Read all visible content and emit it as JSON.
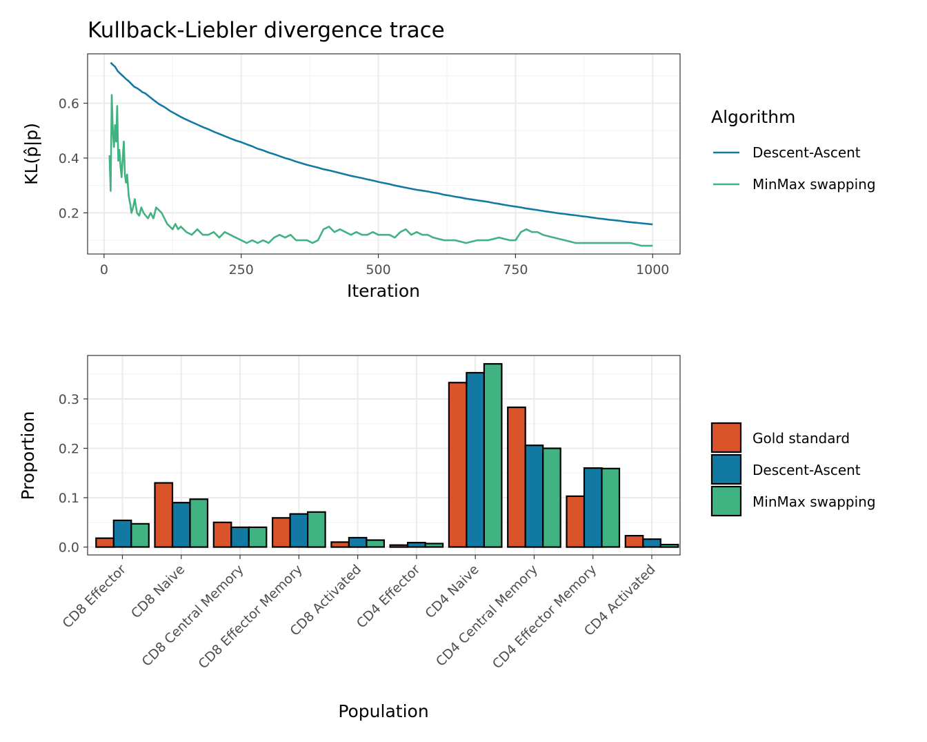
{
  "chart_data": [
    {
      "type": "line",
      "title": "Kullback-Liebler divergence trace",
      "xlabel": "Iteration",
      "ylabel": "KL(p̂|p)",
      "xlim": [
        -30,
        1050
      ],
      "ylim": [
        0.05,
        0.78
      ],
      "x_ticks": [
        0,
        250,
        500,
        750,
        1000
      ],
      "x_tick_labels": [
        "0",
        "250",
        "500",
        "750",
        "1000"
      ],
      "y_ticks": [
        0.2,
        0.4,
        0.6
      ],
      "y_tick_labels": [
        "0.2",
        "0.4",
        "0.6"
      ],
      "grid": true,
      "legend": {
        "title": "Algorithm",
        "position": "right"
      },
      "series": [
        {
          "name": "Descent-Ascent",
          "color": "#1279A3",
          "x": [
            12,
            15,
            20,
            25,
            30,
            35,
            40,
            45,
            50,
            55,
            60,
            65,
            70,
            75,
            80,
            90,
            100,
            110,
            120,
            130,
            140,
            150,
            160,
            170,
            180,
            190,
            200,
            210,
            220,
            230,
            240,
            250,
            260,
            270,
            280,
            290,
            300,
            310,
            320,
            330,
            340,
            350,
            360,
            370,
            380,
            390,
            400,
            410,
            420,
            430,
            440,
            450,
            460,
            470,
            480,
            490,
            500,
            510,
            520,
            530,
            540,
            550,
            560,
            570,
            580,
            590,
            600,
            610,
            620,
            630,
            640,
            650,
            660,
            670,
            680,
            690,
            700,
            710,
            720,
            730,
            740,
            750,
            760,
            770,
            780,
            790,
            800,
            810,
            820,
            830,
            840,
            850,
            860,
            870,
            880,
            890,
            900,
            910,
            920,
            930,
            940,
            950,
            960,
            970,
            980,
            990,
            1000
          ],
          "values": [
            0.748,
            0.742,
            0.733,
            0.717,
            0.707,
            0.698,
            0.688,
            0.68,
            0.67,
            0.66,
            0.655,
            0.648,
            0.64,
            0.636,
            0.628,
            0.612,
            0.597,
            0.586,
            0.572,
            0.561,
            0.55,
            0.54,
            0.531,
            0.522,
            0.513,
            0.505,
            0.496,
            0.488,
            0.48,
            0.472,
            0.464,
            0.458,
            0.45,
            0.443,
            0.434,
            0.428,
            0.42,
            0.414,
            0.407,
            0.4,
            0.394,
            0.387,
            0.381,
            0.375,
            0.37,
            0.365,
            0.359,
            0.355,
            0.35,
            0.345,
            0.34,
            0.335,
            0.331,
            0.327,
            0.322,
            0.318,
            0.313,
            0.309,
            0.305,
            0.3,
            0.296,
            0.292,
            0.288,
            0.284,
            0.281,
            0.278,
            0.274,
            0.271,
            0.266,
            0.263,
            0.259,
            0.256,
            0.252,
            0.249,
            0.246,
            0.243,
            0.24,
            0.236,
            0.233,
            0.229,
            0.226,
            0.223,
            0.22,
            0.216,
            0.213,
            0.21,
            0.207,
            0.204,
            0.201,
            0.198,
            0.196,
            0.193,
            0.191,
            0.188,
            0.186,
            0.183,
            0.18,
            0.178,
            0.175,
            0.173,
            0.171,
            0.168,
            0.166,
            0.164,
            0.162,
            0.16,
            0.158
          ]
        },
        {
          "name": "MinMax swapping",
          "color": "#41B282",
          "x": [
            10,
            12,
            14,
            16,
            18,
            20,
            22,
            24,
            26,
            28,
            30,
            32,
            34,
            36,
            38,
            40,
            42,
            45,
            48,
            50,
            53,
            56,
            60,
            64,
            68,
            72,
            76,
            80,
            85,
            90,
            95,
            100,
            105,
            110,
            115,
            120,
            125,
            130,
            135,
            140,
            150,
            160,
            170,
            180,
            190,
            200,
            210,
            220,
            230,
            240,
            250,
            260,
            270,
            280,
            290,
            300,
            310,
            320,
            330,
            340,
            350,
            360,
            370,
            380,
            390,
            400,
            410,
            420,
            430,
            440,
            450,
            460,
            470,
            480,
            490,
            500,
            510,
            520,
            530,
            540,
            550,
            560,
            570,
            580,
            590,
            600,
            620,
            640,
            660,
            680,
            700,
            720,
            740,
            750,
            760,
            770,
            780,
            790,
            800,
            820,
            840,
            860,
            880,
            900,
            920,
            940,
            960,
            980,
            1000
          ],
          "values": [
            0.41,
            0.28,
            0.63,
            0.5,
            0.44,
            0.52,
            0.46,
            0.59,
            0.39,
            0.43,
            0.37,
            0.33,
            0.4,
            0.46,
            0.34,
            0.31,
            0.34,
            0.26,
            0.23,
            0.2,
            0.22,
            0.25,
            0.2,
            0.19,
            0.22,
            0.2,
            0.19,
            0.18,
            0.2,
            0.18,
            0.22,
            0.21,
            0.2,
            0.18,
            0.16,
            0.15,
            0.14,
            0.16,
            0.14,
            0.15,
            0.13,
            0.12,
            0.14,
            0.12,
            0.12,
            0.13,
            0.11,
            0.13,
            0.12,
            0.11,
            0.1,
            0.09,
            0.1,
            0.09,
            0.1,
            0.09,
            0.11,
            0.12,
            0.11,
            0.12,
            0.1,
            0.1,
            0.1,
            0.09,
            0.1,
            0.14,
            0.15,
            0.13,
            0.14,
            0.13,
            0.12,
            0.13,
            0.12,
            0.12,
            0.13,
            0.12,
            0.12,
            0.12,
            0.11,
            0.13,
            0.14,
            0.12,
            0.13,
            0.12,
            0.12,
            0.11,
            0.1,
            0.1,
            0.09,
            0.1,
            0.1,
            0.11,
            0.1,
            0.1,
            0.13,
            0.14,
            0.13,
            0.13,
            0.12,
            0.11,
            0.1,
            0.09,
            0.09,
            0.09,
            0.09,
            0.09,
            0.09,
            0.08,
            0.08
          ]
        }
      ]
    },
    {
      "type": "bar",
      "xlabel": "Population",
      "ylabel": "Proportion",
      "ylim": [
        -0.016,
        0.388
      ],
      "y_ticks": [
        0.0,
        0.1,
        0.2,
        0.3
      ],
      "y_tick_labels": [
        "0.0",
        "0.1",
        "0.2",
        "0.3"
      ],
      "grid": true,
      "legend": {
        "position": "right"
      },
      "categories": [
        "CD8 Effector",
        "CD8 Naive",
        "CD8 Central Memory",
        "CD8 Effector Memory",
        "CD8 Activated",
        "CD4 Effector",
        "CD4 Naive",
        "CD4 Central Memory",
        "CD4 Effector Memory",
        "CD4 Activated"
      ],
      "series": [
        {
          "name": "Gold standard",
          "color": "#D9532B",
          "values": [
            0.018,
            0.13,
            0.05,
            0.059,
            0.01,
            0.004,
            0.333,
            0.283,
            0.103,
            0.023
          ]
        },
        {
          "name": "Descent-Ascent",
          "color": "#1279A3",
          "values": [
            0.054,
            0.09,
            0.04,
            0.067,
            0.019,
            0.009,
            0.353,
            0.206,
            0.16,
            0.016
          ]
        },
        {
          "name": "MinMax swapping",
          "color": "#41B282",
          "values": [
            0.047,
            0.097,
            0.04,
            0.071,
            0.014,
            0.007,
            0.371,
            0.2,
            0.159,
            0.005
          ]
        }
      ]
    }
  ]
}
